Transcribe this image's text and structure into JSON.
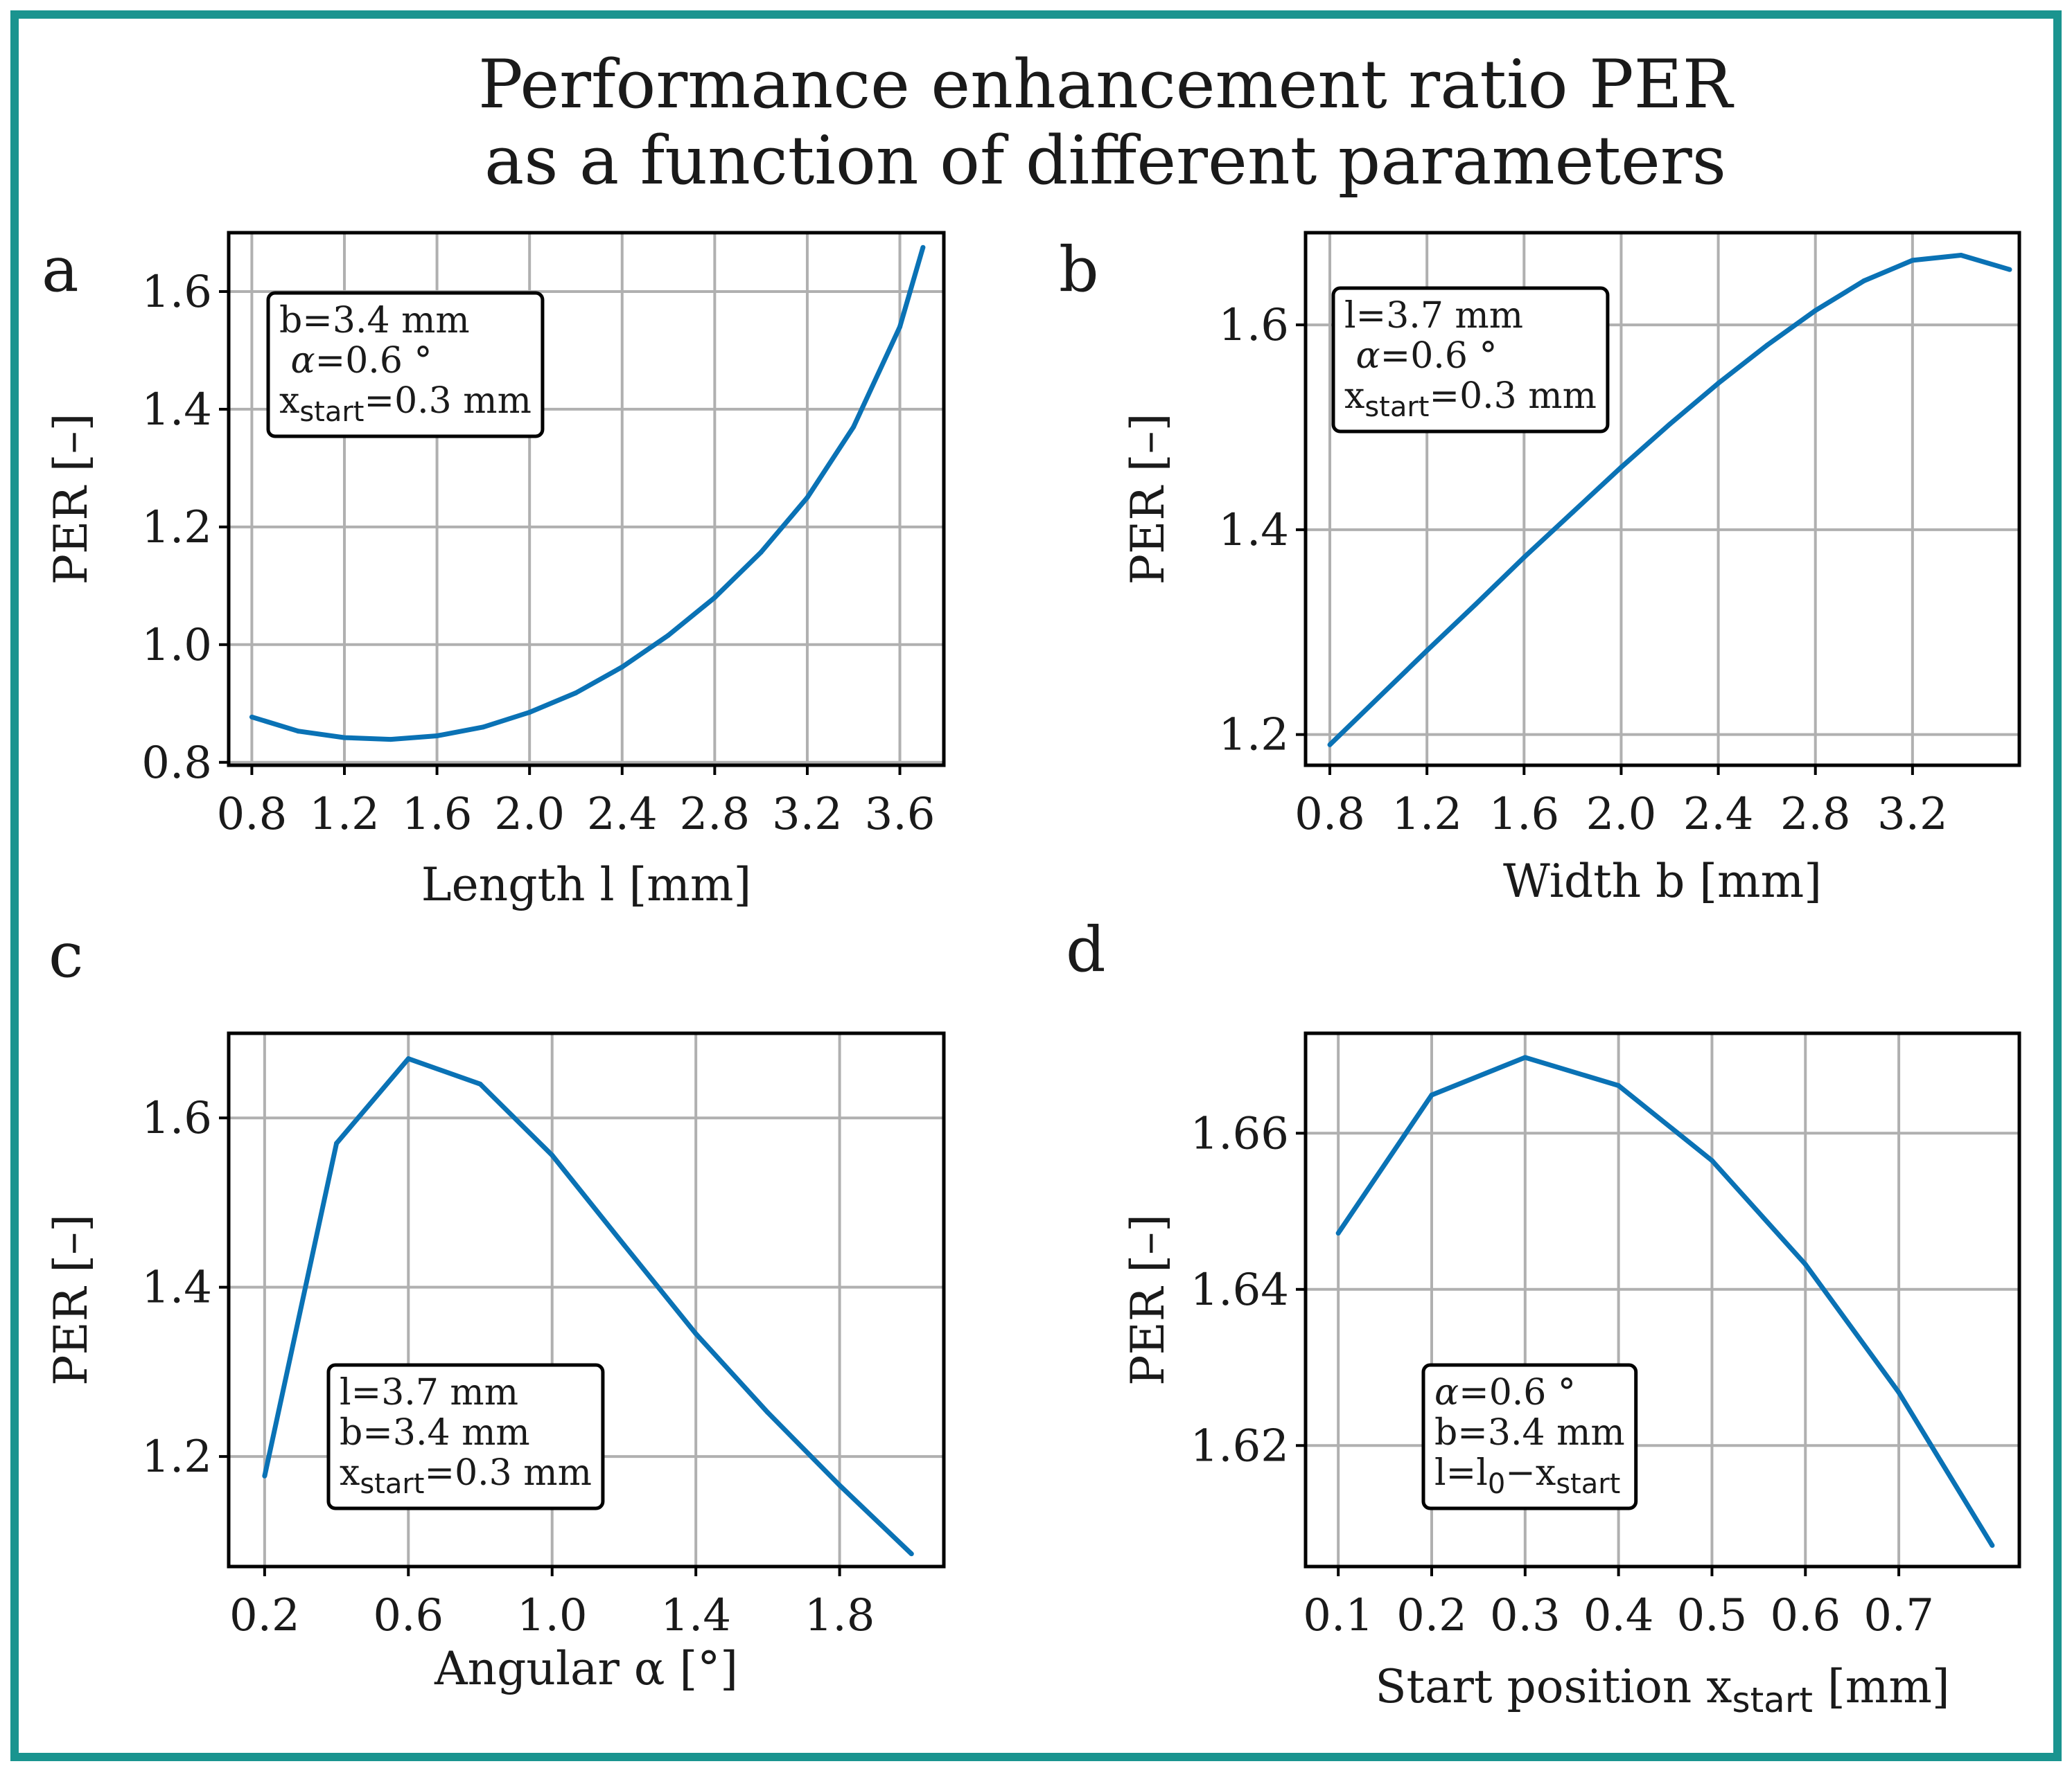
{
  "figure": {
    "title_lines": [
      "Performance enhancement ratio PER",
      "as a function of different parameters"
    ],
    "frame_color": "#1a948f",
    "line_color": "#0a72b5",
    "grid_color": "#b0b0b0"
  },
  "chart_data": [
    {
      "panel_letter": "a",
      "type": "line",
      "title": "",
      "xlabel": "Length l [mm]",
      "ylabel": "PER  [–]",
      "xlim": [
        0.7,
        3.79
      ],
      "ylim": [
        0.795,
        1.7
      ],
      "xticks": [
        0.8,
        1.2,
        1.6,
        2.0,
        2.4,
        2.8,
        3.2,
        3.6
      ],
      "xtick_labels": [
        "0.8",
        "1.2",
        "1.6",
        "2.0",
        "2.4",
        "2.8",
        "3.2",
        "3.6"
      ],
      "yticks": [
        0.8,
        1.0,
        1.2,
        1.4,
        1.6
      ],
      "ytick_labels": [
        "0.8",
        "1.0",
        "1.2",
        "1.4",
        "1.6"
      ],
      "x": [
        0.8,
        1.0,
        1.2,
        1.4,
        1.6,
        1.8,
        2.0,
        2.2,
        2.4,
        2.6,
        2.8,
        3.0,
        3.2,
        3.4,
        3.6,
        3.7
      ],
      "y": [
        0.877,
        0.853,
        0.842,
        0.839,
        0.845,
        0.86,
        0.885,
        0.918,
        0.962,
        1.016,
        1.08,
        1.157,
        1.25,
        1.37,
        1.54,
        1.675
      ],
      "annotation": {
        "position": "top-left",
        "lines": [
          {
            "main": "b=3.4 mm"
          },
          {
            "alpha": "α",
            "main": "=0.6 °"
          },
          {
            "main": "x",
            "sub": "start",
            "tail": "=0.3 mm"
          }
        ]
      }
    },
    {
      "panel_letter": "b",
      "type": "line",
      "title": "",
      "xlabel": "Width b [mm]",
      "ylabel": "PER  [–]",
      "xlim": [
        0.7,
        3.64
      ],
      "ylim": [
        1.17,
        1.69
      ],
      "xticks": [
        0.8,
        1.2,
        1.6,
        2.0,
        2.4,
        2.8,
        3.2
      ],
      "xtick_labels": [
        "0.8",
        "1.2",
        "1.6",
        "2.0",
        "2.4",
        "2.8",
        "3.2"
      ],
      "yticks": [
        1.2,
        1.4,
        1.6
      ],
      "ytick_labels": [
        "1.2",
        "1.4",
        "1.6"
      ],
      "x": [
        0.8,
        1.0,
        1.2,
        1.4,
        1.6,
        1.8,
        2.0,
        2.2,
        2.4,
        2.6,
        2.8,
        3.0,
        3.2,
        3.4,
        3.6
      ],
      "y": [
        1.19,
        1.236,
        1.282,
        1.327,
        1.373,
        1.417,
        1.461,
        1.503,
        1.543,
        1.58,
        1.614,
        1.643,
        1.663,
        1.668,
        1.654
      ],
      "annotation": {
        "position": "top-left",
        "lines": [
          {
            "main": "l=3.7 mm"
          },
          {
            "alpha": "α",
            "main": "=0.6 °"
          },
          {
            "main": "x",
            "sub": "start",
            "tail": "=0.3 mm"
          }
        ]
      }
    },
    {
      "panel_letter": "c",
      "type": "line",
      "title": "",
      "xlabel": "Angular  α  [°]",
      "ylabel": "PER  [–]",
      "xlim": [
        0.1,
        2.09
      ],
      "ylim": [
        1.07,
        1.7
      ],
      "xticks": [
        0.2,
        0.6,
        1.0,
        1.4,
        1.8
      ],
      "xtick_labels": [
        "0.2",
        "0.6",
        "1.0",
        "1.4",
        "1.8"
      ],
      "yticks": [
        1.2,
        1.4,
        1.6
      ],
      "ytick_labels": [
        "1.2",
        "1.4",
        "1.6"
      ],
      "x": [
        0.2,
        0.4,
        0.6,
        0.8,
        1.0,
        1.2,
        1.4,
        1.6,
        1.8,
        2.0
      ],
      "y": [
        1.177,
        1.57,
        1.67,
        1.64,
        1.556,
        1.45,
        1.345,
        1.252,
        1.166,
        1.085
      ],
      "annotation": {
        "position": "bottom-left",
        "lines": [
          {
            "main": "l=3.7 mm"
          },
          {
            "main": "b=3.4 mm"
          },
          {
            "main": "x",
            "sub": "start",
            "tail": "=0.3 mm"
          }
        ]
      }
    },
    {
      "panel_letter": "d",
      "type": "line",
      "title": "",
      "xlabel": "Start position x",
      "xlabel_sub": "start",
      "xlabel_tail": " [mm]",
      "ylabel": "PER  [–]",
      "xlim": [
        0.065,
        0.829
      ],
      "ylim": [
        1.6045,
        1.6728
      ],
      "xticks": [
        0.1,
        0.2,
        0.3,
        0.4,
        0.5,
        0.6,
        0.7
      ],
      "xtick_labels": [
        "0.1",
        "0.2",
        "0.3",
        "0.4",
        "0.5",
        "0.6",
        "0.7"
      ],
      "yticks": [
        1.62,
        1.64,
        1.66
      ],
      "ytick_labels": [
        "1.62",
        "1.64",
        "1.66"
      ],
      "x": [
        0.1,
        0.2,
        0.3,
        0.4,
        0.5,
        0.6,
        0.7,
        0.8
      ],
      "y": [
        1.6472,
        1.6649,
        1.6697,
        1.6661,
        1.6565,
        1.6432,
        1.6268,
        1.6072
      ],
      "annotation": {
        "position": "bottom-center",
        "lines": [
          {
            "alpha": "α",
            "main": "=0.6 °"
          },
          {
            "main": "b=3.4 mm"
          },
          {
            "main": "l=l",
            "sub": "0",
            "tail": "−x",
            "sub2": "start"
          }
        ]
      }
    }
  ]
}
